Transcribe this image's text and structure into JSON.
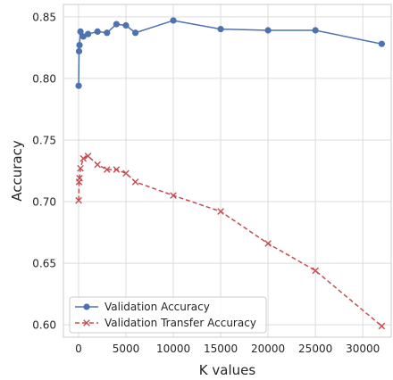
{
  "chart_data": {
    "type": "line",
    "xlabel": "K values",
    "ylabel": "Accuracy",
    "xlim": [
      -1600,
      33000
    ],
    "ylim": [
      0.59,
      0.86
    ],
    "xticks": [
      0,
      5000,
      10000,
      15000,
      20000,
      25000,
      30000
    ],
    "yticks": [
      0.6,
      0.65,
      0.7,
      0.75,
      0.8,
      0.85
    ],
    "xtick_labels": [
      "0",
      "5000",
      "10000",
      "15000",
      "20000",
      "25000",
      "30000"
    ],
    "ytick_labels": [
      "0.60",
      "0.65",
      "0.70",
      "0.75",
      "0.80",
      "0.85"
    ],
    "grid": true,
    "legend_position": "lower-left",
    "series": [
      {
        "name": "Validation Accuracy",
        "color": "#4c72b0",
        "linestyle": "solid",
        "marker": "circle",
        "x": [
          10,
          50,
          100,
          200,
          500,
          1000,
          2000,
          3000,
          4000,
          5000,
          6000,
          10000,
          15000,
          20000,
          25000,
          32000
        ],
        "y": [
          0.794,
          0.822,
          0.827,
          0.838,
          0.834,
          0.836,
          0.838,
          0.837,
          0.844,
          0.843,
          0.837,
          0.847,
          0.84,
          0.839,
          0.839,
          0.828
        ]
      },
      {
        "name": "Validation Transfer Accuracy",
        "color": "#c44e52",
        "linestyle": "dashed",
        "marker": "x",
        "x": [
          10,
          50,
          100,
          200,
          500,
          1000,
          2000,
          3000,
          4000,
          5000,
          6000,
          10000,
          15000,
          20000,
          25000,
          32000
        ],
        "y": [
          0.701,
          0.716,
          0.719,
          0.727,
          0.735,
          0.737,
          0.73,
          0.726,
          0.726,
          0.723,
          0.716,
          0.705,
          0.692,
          0.666,
          0.644,
          0.599
        ]
      }
    ]
  }
}
